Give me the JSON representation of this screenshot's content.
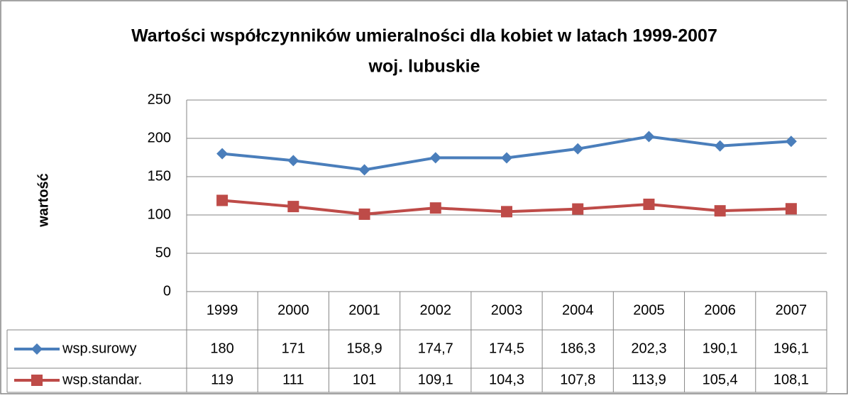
{
  "chart_data": {
    "type": "line",
    "title": [
      "Wartości współczynników  umieralności dla kobiet w latach 1999-2007",
      "woj. lubuskie"
    ],
    "y_label": "wartość",
    "categories": [
      "1999",
      "2000",
      "2001",
      "2002",
      "2003",
      "2004",
      "2005",
      "2006",
      "2007"
    ],
    "series": [
      {
        "name": "wsp.surowy",
        "color": "#4a7ebb",
        "marker": "diamond",
        "values": [
          180,
          171,
          158.9,
          174.7,
          174.5,
          186.3,
          202.3,
          190.1,
          196.1
        ],
        "value_labels": [
          "180",
          "171",
          "158,9",
          "174,7",
          "174,5",
          "186,3",
          "202,3",
          "190,1",
          "196,1"
        ]
      },
      {
        "name": "wsp.standar.",
        "color": "#be4b48",
        "marker": "square",
        "values": [
          119,
          111,
          101,
          109.1,
          104.3,
          107.8,
          113.9,
          105.4,
          108.1
        ],
        "value_labels": [
          "119",
          "111",
          "101",
          "109,1",
          "104,3",
          "107,8",
          "113,9",
          "105,4",
          "108,1"
        ]
      }
    ],
    "ylim": [
      0,
      250
    ],
    "yticks": [
      0,
      50,
      100,
      150,
      200,
      250
    ],
    "grid": true
  }
}
